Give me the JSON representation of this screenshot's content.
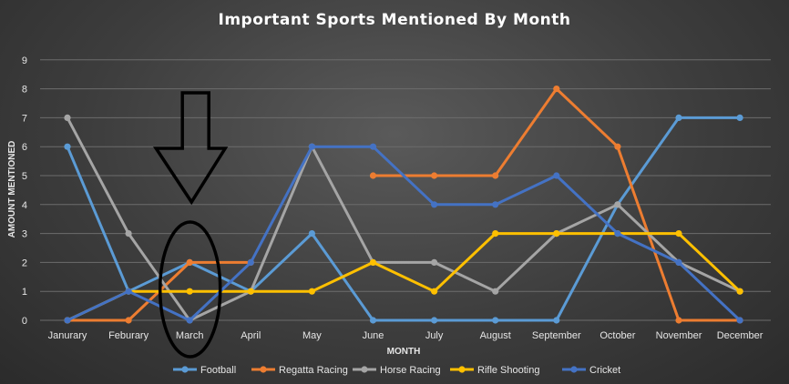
{
  "chart_data": {
    "type": "line",
    "title": "Important Sports Mentioned By  Month",
    "xlabel": "MONTH",
    "ylabel": "AMOUNT MENTIONED",
    "ylim": [
      0,
      9
    ],
    "yticks": [
      0,
      1,
      2,
      3,
      4,
      5,
      6,
      7,
      8,
      9
    ],
    "grid": true,
    "legend_position": "bottom",
    "categories": [
      "Janurary",
      "Feburary",
      "March",
      "April",
      "May",
      "June",
      "July",
      "August",
      "September",
      "October",
      "November",
      "December"
    ],
    "series": [
      {
        "name": "Football",
        "color": "#5b9bd5",
        "values": [
          6,
          1,
          2,
          1,
          3,
          0,
          0,
          0,
          0,
          4,
          7,
          7
        ]
      },
      {
        "name": "Regatta Racing",
        "color": "#ed7d31",
        "values": [
          0,
          0,
          2,
          2,
          null,
          5,
          5,
          5,
          8,
          6,
          0,
          0
        ]
      },
      {
        "name": "Horse Racing",
        "color": "#a5a5a5",
        "values": [
          7,
          3,
          0,
          1,
          6,
          2,
          2,
          1,
          3,
          4,
          2,
          1
        ]
      },
      {
        "name": "Rifle Shooting",
        "color": "#ffc000",
        "values": [
          0,
          1,
          1,
          1,
          1,
          2,
          1,
          3,
          3,
          3,
          3,
          1
        ]
      },
      {
        "name": "Cricket",
        "color": "#4472c4",
        "values": [
          0,
          1,
          0,
          2,
          6,
          6,
          4,
          4,
          5,
          3,
          2,
          0
        ]
      }
    ],
    "annotations": [
      {
        "type": "arrow",
        "color": "#000000",
        "target_category": "March"
      },
      {
        "type": "ellipse",
        "color": "#000000",
        "target_category": "March"
      }
    ]
  }
}
